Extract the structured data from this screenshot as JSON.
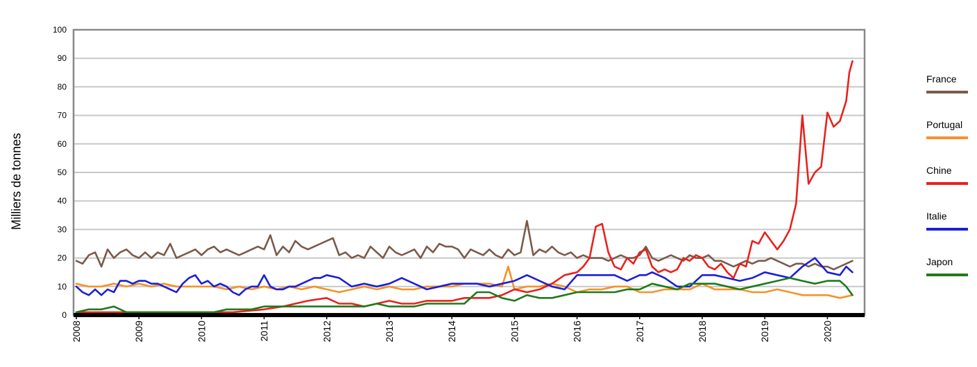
{
  "chart_data": {
    "type": "line",
    "ylabel": "Milliers de tonnes",
    "xlabel": "",
    "ylim": [
      0,
      100
    ],
    "yticks": [
      0,
      10,
      20,
      30,
      40,
      50,
      60,
      70,
      80,
      90,
      100
    ],
    "xlim": [
      2008,
      2020.4
    ],
    "xticks": [
      "2008",
      "2009",
      "2010",
      "2011",
      "2012",
      "2013",
      "2014",
      "2015",
      "2016",
      "2017",
      "2018",
      "2019",
      "2020"
    ],
    "grid": "horizontal",
    "legend_position": "right",
    "series": [
      {
        "name": "France",
        "color": "#7a5a4a",
        "x": [
          2008,
          2008.1,
          2008.2,
          2008.3,
          2008.4,
          2008.5,
          2008.6,
          2008.7,
          2008.8,
          2008.9,
          2009,
          2009.1,
          2009.2,
          2009.3,
          2009.4,
          2009.5,
          2009.6,
          2009.7,
          2009.8,
          2009.9,
          2010,
          2010.1,
          2010.2,
          2010.3,
          2010.4,
          2010.5,
          2010.6,
          2010.7,
          2010.8,
          2010.9,
          2011,
          2011.1,
          2011.2,
          2011.3,
          2011.4,
          2011.5,
          2011.6,
          2011.7,
          2011.8,
          2011.9,
          2012,
          2012.1,
          2012.2,
          2012.3,
          2012.4,
          2012.5,
          2012.6,
          2012.7,
          2012.8,
          2012.9,
          2013,
          2013.1,
          2013.2,
          2013.3,
          2013.4,
          2013.5,
          2013.6,
          2013.7,
          2013.8,
          2013.9,
          2014,
          2014.1,
          2014.2,
          2014.3,
          2014.4,
          2014.5,
          2014.6,
          2014.7,
          2014.8,
          2014.9,
          2015,
          2015.1,
          2015.2,
          2015.3,
          2015.4,
          2015.5,
          2015.6,
          2015.7,
          2015.8,
          2015.9,
          2016,
          2016.1,
          2016.2,
          2016.3,
          2016.4,
          2016.5,
          2016.6,
          2016.7,
          2016.8,
          2016.9,
          2017,
          2017.1,
          2017.2,
          2017.3,
          2017.4,
          2017.5,
          2017.6,
          2017.7,
          2017.8,
          2017.9,
          2018,
          2018.1,
          2018.2,
          2018.3,
          2018.4,
          2018.5,
          2018.6,
          2018.7,
          2018.8,
          2018.9,
          2019,
          2019.1,
          2019.2,
          2019.3,
          2019.4,
          2019.5,
          2019.6,
          2019.7,
          2019.8,
          2019.9,
          2020,
          2020.1,
          2020.2,
          2020.3,
          2020.4
        ],
        "y": [
          19,
          18,
          21,
          22,
          17,
          23,
          20,
          22,
          23,
          21,
          20,
          22,
          20,
          22,
          21,
          25,
          20,
          21,
          22,
          23,
          21,
          23,
          24,
          22,
          23,
          22,
          21,
          22,
          23,
          24,
          23,
          28,
          21,
          24,
          22,
          26,
          24,
          23,
          24,
          25,
          26,
          27,
          21,
          22,
          20,
          21,
          20,
          24,
          22,
          20,
          24,
          22,
          21,
          22,
          23,
          20,
          24,
          22,
          25,
          24,
          24,
          23,
          20,
          23,
          22,
          21,
          23,
          21,
          20,
          23,
          21,
          22,
          33,
          21,
          23,
          22,
          24,
          22,
          21,
          22,
          20,
          21,
          20,
          20,
          20,
          19,
          20,
          21,
          20,
          20,
          21,
          24,
          20,
          19,
          20,
          21,
          20,
          19,
          21,
          20,
          20,
          21,
          19,
          19,
          18,
          17,
          18,
          19,
          18,
          19,
          19,
          20,
          19,
          18,
          17,
          18,
          18,
          17,
          18,
          17,
          17,
          16,
          17,
          18,
          19
        ]
      },
      {
        "name": "Portugal",
        "color": "#f5922a",
        "x": [
          2008,
          2008.2,
          2008.4,
          2008.6,
          2008.8,
          2009,
          2009.2,
          2009.4,
          2009.6,
          2009.8,
          2010,
          2010.2,
          2010.4,
          2010.6,
          2010.8,
          2011,
          2011.2,
          2011.4,
          2011.6,
          2011.8,
          2012,
          2012.2,
          2012.4,
          2012.6,
          2012.8,
          2013,
          2013.2,
          2013.4,
          2013.6,
          2013.8,
          2014,
          2014.2,
          2014.4,
          2014.6,
          2014.8,
          2014.9,
          2015,
          2015.2,
          2015.4,
          2015.6,
          2015.8,
          2016,
          2016.2,
          2016.4,
          2016.6,
          2016.8,
          2017,
          2017.2,
          2017.4,
          2017.6,
          2017.8,
          2018,
          2018.2,
          2018.4,
          2018.6,
          2018.8,
          2019,
          2019.2,
          2019.4,
          2019.6,
          2019.8,
          2020,
          2020.2,
          2020.4
        ],
        "y": [
          11,
          10,
          10,
          11,
          10,
          11,
          10,
          11,
          10,
          10,
          10,
          10,
          9,
          10,
          9,
          10,
          9,
          10,
          9,
          10,
          9,
          8,
          9,
          10,
          9,
          10,
          9,
          9,
          10,
          10,
          10,
          11,
          11,
          11,
          10,
          17,
          9,
          10,
          10,
          11,
          10,
          8,
          9,
          9,
          10,
          10,
          8,
          8,
          9,
          9,
          9,
          11,
          9,
          9,
          9,
          8,
          8,
          9,
          8,
          7,
          7,
          7,
          6,
          7
        ]
      },
      {
        "name": "Chine",
        "color": "#e8211c",
        "x": [
          2008,
          2008.5,
          2009,
          2009.5,
          2010,
          2010.5,
          2011,
          2011.3,
          2011.5,
          2011.7,
          2012,
          2012.2,
          2012.4,
          2012.6,
          2012.8,
          2013,
          2013.2,
          2013.4,
          2013.6,
          2013.8,
          2014,
          2014.2,
          2014.4,
          2014.6,
          2014.8,
          2015,
          2015.2,
          2015.4,
          2015.6,
          2015.8,
          2016,
          2016.1,
          2016.2,
          2016.3,
          2016.4,
          2016.5,
          2016.6,
          2016.7,
          2016.8,
          2016.9,
          2017,
          2017.1,
          2017.2,
          2017.3,
          2017.4,
          2017.5,
          2017.6,
          2017.7,
          2017.8,
          2017.9,
          2018,
          2018.1,
          2018.2,
          2018.3,
          2018.4,
          2018.5,
          2018.6,
          2018.7,
          2018.8,
          2018.9,
          2019,
          2019.1,
          2019.2,
          2019.3,
          2019.4,
          2019.5,
          2019.6,
          2019.7,
          2019.8,
          2019.9,
          2020,
          2020.1,
          2020.2,
          2020.3,
          2020.35,
          2020.4
        ],
        "y": [
          1,
          1,
          1,
          1,
          1,
          1,
          2,
          3,
          4,
          5,
          6,
          4,
          4,
          3,
          4,
          5,
          4,
          4,
          5,
          5,
          5,
          6,
          6,
          6,
          7,
          9,
          8,
          9,
          11,
          14,
          15,
          17,
          20,
          31,
          32,
          22,
          17,
          16,
          20,
          18,
          22,
          23,
          17,
          15,
          16,
          15,
          16,
          20,
          19,
          21,
          20,
          17,
          16,
          18,
          15,
          13,
          18,
          17,
          26,
          25,
          29,
          26,
          23,
          26,
          30,
          39,
          70,
          46,
          50,
          52,
          71,
          66,
          68,
          75,
          85,
          89
        ]
      },
      {
        "name": "Italie",
        "color": "#1c1fd6",
        "x": [
          2008,
          2008.1,
          2008.2,
          2008.3,
          2008.4,
          2008.5,
          2008.6,
          2008.7,
          2008.8,
          2008.9,
          2009,
          2009.1,
          2009.2,
          2009.3,
          2009.4,
          2009.5,
          2009.6,
          2009.7,
          2009.8,
          2009.9,
          2010,
          2010.1,
          2010.2,
          2010.3,
          2010.4,
          2010.5,
          2010.6,
          2010.7,
          2010.8,
          2010.9,
          2011,
          2011.1,
          2011.2,
          2011.3,
          2011.4,
          2011.5,
          2011.6,
          2011.7,
          2011.8,
          2011.9,
          2012,
          2012.2,
          2012.4,
          2012.6,
          2012.8,
          2013,
          2013.2,
          2013.4,
          2013.6,
          2013.8,
          2014,
          2014.2,
          2014.4,
          2014.6,
          2014.8,
          2015,
          2015.2,
          2015.4,
          2015.6,
          2015.8,
          2016,
          2016.2,
          2016.4,
          2016.6,
          2016.8,
          2017,
          2017.1,
          2017.2,
          2017.3,
          2017.4,
          2017.6,
          2017.8,
          2018,
          2018.2,
          2018.4,
          2018.6,
          2018.8,
          2019,
          2019.2,
          2019.4,
          2019.6,
          2019.8,
          2020,
          2020.2,
          2020.3,
          2020.4
        ],
        "y": [
          10,
          8,
          7,
          9,
          7,
          9,
          8,
          12,
          12,
          11,
          12,
          12,
          11,
          11,
          10,
          9,
          8,
          11,
          13,
          14,
          11,
          12,
          10,
          11,
          10,
          8,
          7,
          9,
          10,
          10,
          14,
          10,
          9,
          9,
          10,
          10,
          11,
          12,
          13,
          13,
          14,
          13,
          10,
          11,
          10,
          11,
          13,
          11,
          9,
          10,
          11,
          11,
          11,
          10,
          11,
          12,
          14,
          12,
          10,
          9,
          14,
          14,
          14,
          14,
          12,
          14,
          14,
          15,
          14,
          13,
          10,
          10,
          14,
          14,
          13,
          12,
          13,
          15,
          14,
          13,
          17,
          20,
          15,
          14,
          17,
          15
        ]
      },
      {
        "name": "Japon",
        "color": "#1f7a1a",
        "x": [
          2008,
          2008.2,
          2008.4,
          2008.6,
          2008.8,
          2009,
          2009.2,
          2009.4,
          2009.6,
          2009.8,
          2010,
          2010.2,
          2010.4,
          2010.6,
          2010.8,
          2011,
          2011.2,
          2011.4,
          2011.6,
          2011.8,
          2012,
          2012.2,
          2012.4,
          2012.6,
          2012.8,
          2013,
          2013.2,
          2013.4,
          2013.6,
          2013.8,
          2014,
          2014.2,
          2014.4,
          2014.6,
          2014.8,
          2015,
          2015.2,
          2015.4,
          2015.6,
          2015.8,
          2016,
          2016.2,
          2016.4,
          2016.6,
          2016.8,
          2017,
          2017.2,
          2017.4,
          2017.6,
          2017.8,
          2018,
          2018.2,
          2018.4,
          2018.6,
          2018.8,
          2019,
          2019.2,
          2019.4,
          2019.6,
          2019.8,
          2020,
          2020.2,
          2020.3,
          2020.4
        ],
        "y": [
          1,
          2,
          2,
          3,
          1,
          1,
          1,
          1,
          1,
          1,
          1,
          1,
          2,
          2,
          2,
          3,
          3,
          3,
          3,
          3,
          3,
          3,
          3,
          3,
          4,
          3,
          3,
          3,
          4,
          4,
          4,
          4,
          8,
          8,
          6,
          5,
          7,
          6,
          6,
          7,
          8,
          8,
          8,
          8,
          9,
          9,
          11,
          10,
          9,
          11,
          11,
          11,
          10,
          9,
          10,
          11,
          12,
          13,
          12,
          11,
          12,
          12,
          10,
          7
        ]
      }
    ]
  }
}
